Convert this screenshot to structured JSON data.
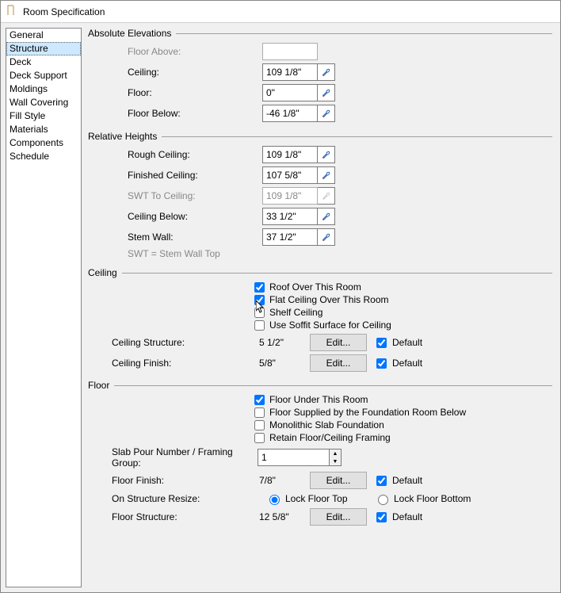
{
  "window": {
    "title": "Room Specification"
  },
  "sidebar": {
    "items": [
      {
        "label": "General"
      },
      {
        "label": "Structure"
      },
      {
        "label": "Deck"
      },
      {
        "label": "Deck Support"
      },
      {
        "label": "Moldings"
      },
      {
        "label": "Wall Covering"
      },
      {
        "label": "Fill Style"
      },
      {
        "label": "Materials"
      },
      {
        "label": "Components"
      },
      {
        "label": "Schedule"
      }
    ],
    "selected": 1
  },
  "absolute": {
    "title": "Absolute Elevations",
    "floor_above_label": "Floor Above:",
    "floor_above_value": "",
    "ceiling_label": "Ceiling:",
    "ceiling_value": "109 1/8\"",
    "floor_label": "Floor:",
    "floor_value": "0\"",
    "floor_below_label": "Floor Below:",
    "floor_below_value": "-46 1/8\""
  },
  "relative": {
    "title": "Relative Heights",
    "rough_ceiling_label": "Rough Ceiling:",
    "rough_ceiling_value": "109 1/8\"",
    "finished_ceiling_label": "Finished Ceiling:",
    "finished_ceiling_value": "107 5/8\"",
    "swt_label": "SWT To Ceiling:",
    "swt_value": "109 1/8\"",
    "ceiling_below_label": "Ceiling Below:",
    "ceiling_below_value": "33 1/2\"",
    "stem_wall_label": "Stem Wall:",
    "stem_wall_value": "37 1/2\"",
    "note": "SWT = Stem Wall Top"
  },
  "ceiling": {
    "title": "Ceiling",
    "roof_over": "Roof Over This Room",
    "flat_ceiling": "Flat Ceiling Over This Room",
    "shelf": "Shelf Ceiling",
    "soffit": "Use Soffit Surface for Ceiling",
    "structure_label": "Ceiling Structure:",
    "structure_value": "5 1/2\"",
    "finish_label": "Ceiling Finish:",
    "finish_value": "5/8\"",
    "edit": "Edit...",
    "default": "Default"
  },
  "floor": {
    "title": "Floor",
    "under": "Floor Under This Room",
    "supplied": "Floor Supplied by the Foundation Room Below",
    "mono": "Monolithic Slab Foundation",
    "retain": "Retain Floor/Ceiling Framing",
    "slab_label": "Slab Pour Number / Framing Group:",
    "slab_value": "1",
    "finish_label": "Floor Finish:",
    "finish_value": "7/8\"",
    "resize_label": "On Structure Resize:",
    "lock_top": "Lock Floor Top",
    "lock_bottom": "Lock Floor Bottom",
    "structure_label": "Floor Structure:",
    "structure_value": "12 5/8\"",
    "edit": "Edit...",
    "default": "Default"
  }
}
